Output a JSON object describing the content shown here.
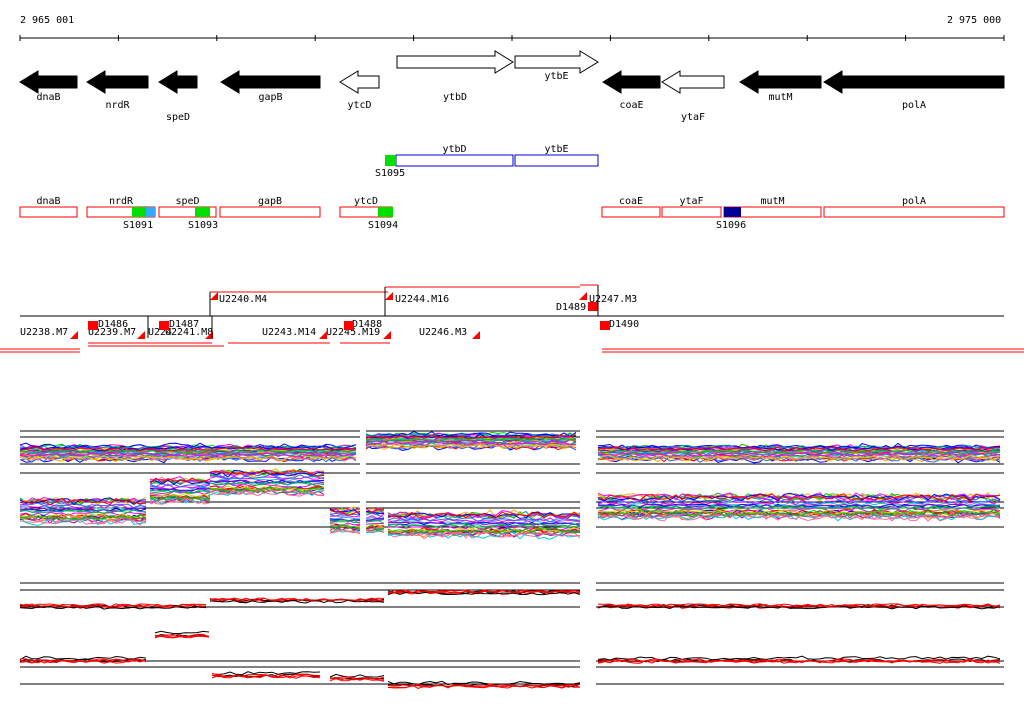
{
  "ruler": {
    "start_label": "2 965 001",
    "end_label": "2 975 000"
  },
  "genes": [
    {
      "name": "dnaB",
      "strand": "-",
      "filled": true
    },
    {
      "name": "nrdR",
      "strand": "-",
      "filled": true
    },
    {
      "name": "speD",
      "strand": "-",
      "filled": true
    },
    {
      "name": "gapB",
      "strand": "-",
      "filled": true
    },
    {
      "name": "ytcD",
      "strand": "-",
      "filled": false
    },
    {
      "name": "ytbD",
      "strand": "+",
      "filled": false
    },
    {
      "name": "ytbE",
      "strand": "+",
      "filled": false
    },
    {
      "name": "coaE",
      "strand": "-",
      "filled": true
    },
    {
      "name": "ytaF",
      "strand": "-",
      "filled": false
    },
    {
      "name": "mutM",
      "strand": "-",
      "filled": true
    },
    {
      "name": "polA",
      "strand": "-",
      "filled": true
    }
  ],
  "plus_boxes": [
    {
      "name": "ytbD"
    },
    {
      "name": "ytbE"
    }
  ],
  "plus_sites": [
    {
      "label": "S1095",
      "color": "#00e000"
    }
  ],
  "minus_boxes": [
    {
      "name": "dnaB"
    },
    {
      "name": "nrdR"
    },
    {
      "name": "speD"
    },
    {
      "name": "gapB"
    },
    {
      "name": "ytcD"
    },
    {
      "name": "coaE"
    },
    {
      "name": "ytaF"
    },
    {
      "name": "mutM"
    },
    {
      "name": "polA"
    }
  ],
  "minus_sites": [
    {
      "label": "S1091",
      "color": "#00e000"
    },
    {
      "label": "S1093",
      "color": "#00e000"
    },
    {
      "label": "S1094",
      "color": "#00e000"
    },
    {
      "label": "S1096",
      "color": "#000099"
    }
  ],
  "transcript_labels": [
    "U2238.M7",
    "U2239.M7",
    "U224",
    "U2241.M8",
    "U2240.M4",
    "U2243.M14",
    "U2245.M19",
    "U2244.M16",
    "U2246.M3",
    "U2247.M3",
    "D1486",
    "D1487",
    "D1488",
    "D1489",
    "D1490"
  ],
  "colors": {
    "annotation_red": "#ff0000",
    "plus_box_blue": "#0000cc",
    "site_green": "#00e000",
    "site_blue": "#000099"
  }
}
